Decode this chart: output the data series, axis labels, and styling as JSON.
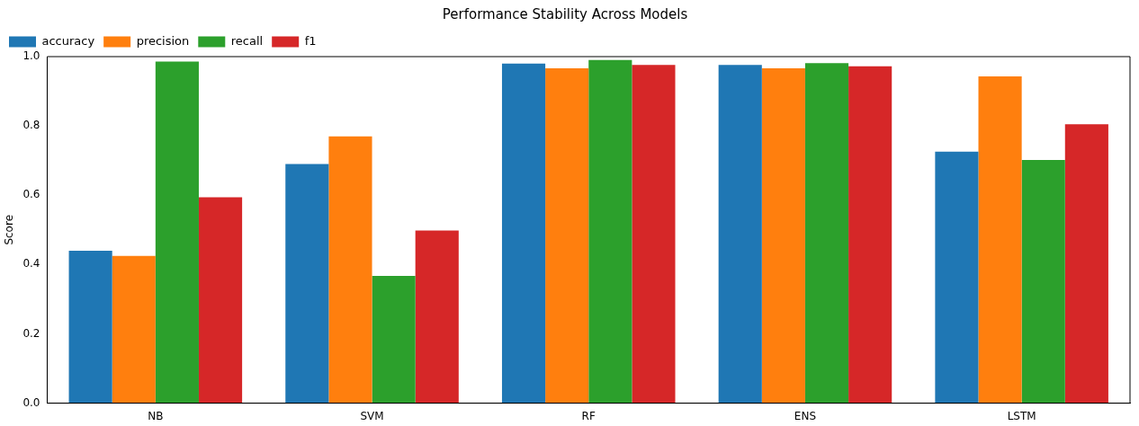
{
  "chart_data": {
    "type": "bar",
    "title": "Performance Stability Across Models",
    "ylabel": "Score",
    "categories": [
      "NB",
      "SVM",
      "RF",
      "ENS",
      "LSTM"
    ],
    "series": [
      {
        "name": "accuracy",
        "color": "#1f77b4",
        "values": [
          0.44,
          0.69,
          0.98,
          0.976,
          0.726
        ]
      },
      {
        "name": "precision",
        "color": "#ff7f0e",
        "values": [
          0.425,
          0.77,
          0.966,
          0.966,
          0.943
        ]
      },
      {
        "name": "recall",
        "color": "#2ca02c",
        "values": [
          0.986,
          0.367,
          0.99,
          0.981,
          0.702
        ]
      },
      {
        "name": "f1",
        "color": "#d62728",
        "values": [
          0.594,
          0.498,
          0.976,
          0.972,
          0.805
        ]
      }
    ],
    "ylim": [
      0,
      1
    ],
    "yticks": [
      {
        "value": 0,
        "label": "0.0"
      },
      {
        "value": 0.2,
        "label": "0.2"
      },
      {
        "value": 0.4,
        "label": "0.4"
      },
      {
        "value": 0.6,
        "label": "0.6"
      },
      {
        "value": 0.8,
        "label": "0.8"
      },
      {
        "value": 1,
        "label": "1.0"
      }
    ],
    "grid": false,
    "legend": "top left"
  }
}
